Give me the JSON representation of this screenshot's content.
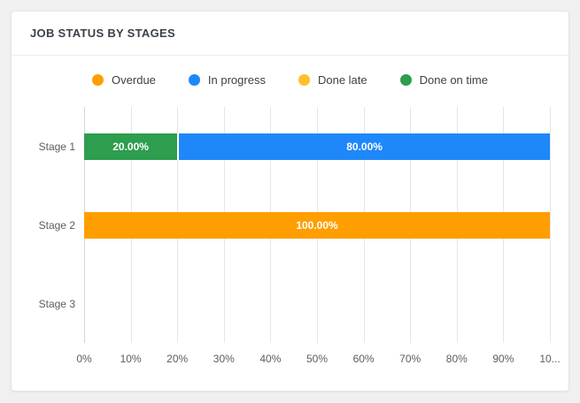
{
  "card": {
    "title": "JOB STATUS BY STAGES"
  },
  "colors": {
    "page_background": "#f0f0f1",
    "card_background": "#ffffff",
    "gridline": "#e5e6e9",
    "zero_line": "#cfd6de",
    "axis_text": "#5c5d60",
    "legend_text": "#3d4045",
    "bar_value_text": "#ffffff"
  },
  "chart_data": {
    "type": "bar",
    "orientation": "horizontal",
    "stacked": true,
    "title": "JOB STATUS BY STAGES",
    "xlabel": "",
    "ylabel": "",
    "xlim": [
      0,
      100
    ],
    "grid": true,
    "legend_position": "top",
    "categories": [
      "Stage 1",
      "Stage 2",
      "Stage 3"
    ],
    "series": [
      {
        "name": "Overdue",
        "color": "#ff9e00",
        "values": [
          0,
          100,
          0
        ]
      },
      {
        "name": "In progress",
        "color": "#1e87fa",
        "values": [
          80,
          0,
          0
        ]
      },
      {
        "name": "Done late",
        "color": "#fcc22b",
        "values": [
          0,
          0,
          0
        ]
      },
      {
        "name": "Done on time",
        "color": "#2d9d4e",
        "values": [
          20,
          0,
          0
        ]
      }
    ],
    "rows": [
      {
        "category": "Stage 1",
        "segments": [
          {
            "series": "Done on time",
            "value": 20,
            "label": "20.00%"
          },
          {
            "series": "In progress",
            "value": 80,
            "label": "80.00%"
          }
        ]
      },
      {
        "category": "Stage 2",
        "segments": [
          {
            "series": "Overdue",
            "value": 100,
            "label": "100.00%"
          }
        ]
      },
      {
        "category": "Stage 3",
        "segments": []
      }
    ],
    "x_ticks": [
      "0%",
      "10%",
      "20%",
      "30%",
      "40%",
      "50%",
      "60%",
      "70%",
      "80%",
      "90%",
      "10..."
    ]
  }
}
